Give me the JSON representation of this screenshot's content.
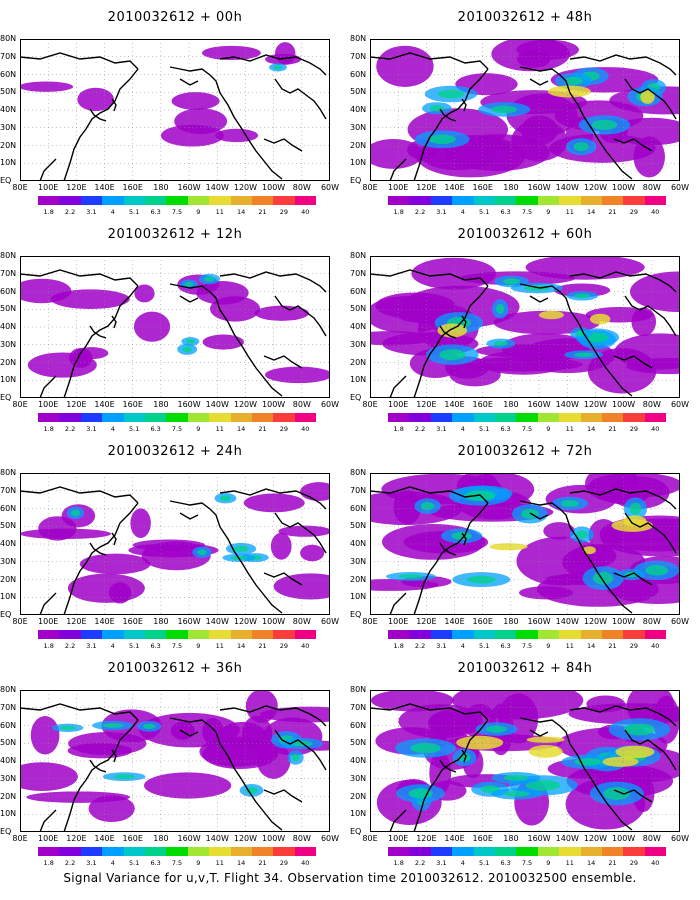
{
  "panels": [
    {
      "title": "2010032612 + 00h",
      "col": 0,
      "row": 0,
      "intensity": 0.1
    },
    {
      "title": "2010032612 + 48h",
      "col": 1,
      "row": 0,
      "intensity": 0.7
    },
    {
      "title": "2010032612 + 12h",
      "col": 0,
      "row": 1,
      "intensity": 0.25
    },
    {
      "title": "2010032612 + 60h",
      "col": 1,
      "row": 1,
      "intensity": 0.8
    },
    {
      "title": "2010032612 + 24h",
      "col": 0,
      "row": 2,
      "intensity": 0.4
    },
    {
      "title": "2010032612 + 72h",
      "col": 1,
      "row": 2,
      "intensity": 0.9
    },
    {
      "title": "2010032612 + 36h",
      "col": 0,
      "row": 3,
      "intensity": 0.55
    },
    {
      "title": "2010032612 + 84h",
      "col": 1,
      "row": 3,
      "intensity": 1.0
    }
  ],
  "lat_labels": [
    "80N",
    "70N",
    "60N",
    "50N",
    "40N",
    "30N",
    "20N",
    "10N",
    "EQ"
  ],
  "lon_labels": [
    "80E",
    "100E",
    "120E",
    "140E",
    "160E",
    "180",
    "160W",
    "140W",
    "120W",
    "100W",
    "80W",
    "60W"
  ],
  "colorbar": {
    "labels": [
      "1.8",
      "2.2",
      "3.1",
      "4",
      "5.1",
      "6.3",
      "7.5",
      "9",
      "11",
      "14",
      "21",
      "29",
      "40"
    ],
    "colors": [
      "#a000c8",
      "#8200dc",
      "#1e3cff",
      "#00a0ff",
      "#00c8c8",
      "#00d28c",
      "#00dc00",
      "#a0e632",
      "#e6dc32",
      "#e6af2d",
      "#f08228",
      "#fa3c3c",
      "#f00082"
    ]
  },
  "footer": "Signal Variance for u,v,T. Flight 34. Observation time 2010032612. 2010032500 ensemble."
}
